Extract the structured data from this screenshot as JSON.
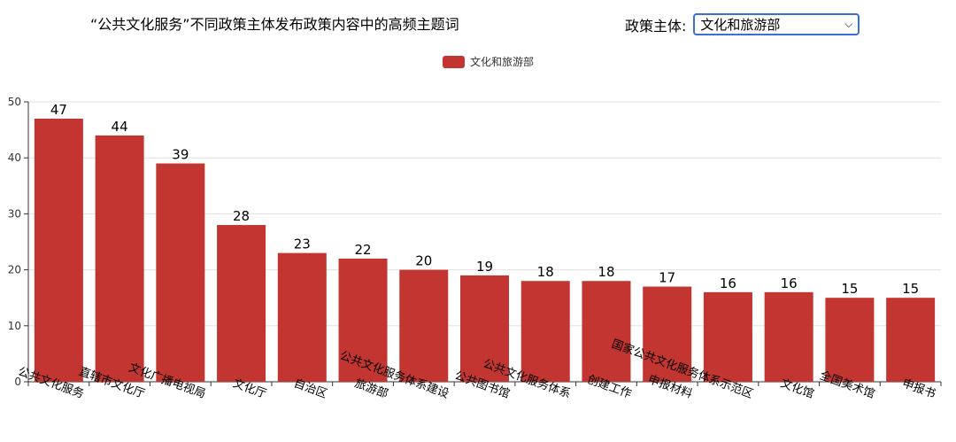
{
  "header": {
    "title": "“公共文化服务”不同政策主体发布政策内容中的高频主题词",
    "selector_label": "政策主体:",
    "selector_value": "文化和旅游部"
  },
  "colors": {
    "bar": "#c23531",
    "grid": "#e0e0e0",
    "axis": "#333333"
  },
  "chart_data": {
    "type": "bar",
    "categories": [
      "公共文化服务",
      "直辖市文化厅",
      "文化广播电视局",
      "文化厅",
      "自治区",
      "旅游部",
      "公共文化服务体系建设",
      "公共图书馆",
      "公共文化服务体系",
      "创建工作",
      "申报材料",
      "国家公共文化服务体系示范区",
      "文化馆",
      "全国美术馆",
      "申报书"
    ],
    "series": [
      {
        "name": "文化和旅游部",
        "values": [
          47,
          44,
          39,
          28,
          23,
          22,
          20,
          19,
          18,
          18,
          17,
          16,
          16,
          15,
          15
        ]
      }
    ],
    "ylim": [
      0,
      50
    ],
    "yticks": [
      0,
      10,
      20,
      30,
      40,
      50
    ],
    "grid": true,
    "legend": "top-center"
  }
}
